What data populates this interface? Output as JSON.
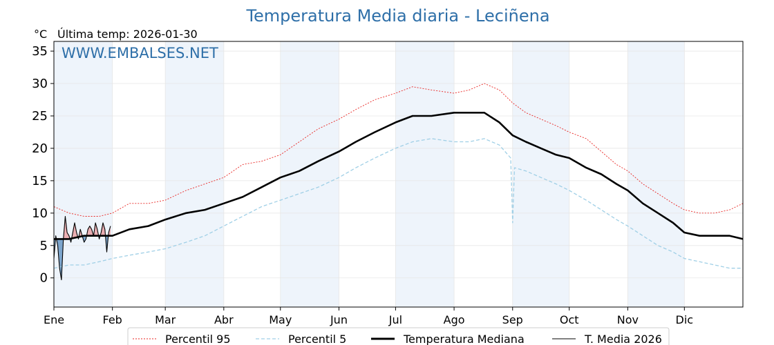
{
  "title": "Temperatura Media diaria - Leciñena",
  "unit_label": "°C",
  "last_temp_label": "Última temp: 2026-01-30",
  "brand": "WWW.EMBALSES.NET",
  "colors": {
    "p95": "#e8221f",
    "p5": "#9fcfe6",
    "median": "#000000",
    "current": "#000000",
    "above_fill": "#e9a5a8",
    "below_fill": "#6b9ac7",
    "title": "#2e6fa8",
    "month_band": "#eef4fb"
  },
  "chart_data": {
    "type": "line",
    "title": "Temperatura Media diaria - Leciñena",
    "ylabel": "°C",
    "ylim": [
      -4.5,
      36.5
    ],
    "yticks": [
      0,
      5,
      10,
      15,
      20,
      25,
      30,
      35
    ],
    "xlim": [
      0,
      365
    ],
    "grid": true,
    "legend_position": "bottom",
    "months": [
      {
        "label": "Ene",
        "day": 0
      },
      {
        "label": "Feb",
        "day": 31
      },
      {
        "label": "Mar",
        "day": 59
      },
      {
        "label": "Abr",
        "day": 90
      },
      {
        "label": "May",
        "day": 120
      },
      {
        "label": "Jun",
        "day": 151
      },
      {
        "label": "Jul",
        "day": 181
      },
      {
        "label": "Ago",
        "day": 212
      },
      {
        "label": "Sep",
        "day": 243
      },
      {
        "label": "Oct",
        "day": 273
      },
      {
        "label": "Nov",
        "day": 304
      },
      {
        "label": "Dic",
        "day": 334
      }
    ],
    "series": [
      {
        "name": "Percentil 95",
        "style": "dotted-red",
        "days": [
          0,
          8,
          16,
          24,
          31,
          40,
          50,
          59,
          70,
          80,
          90,
          100,
          110,
          120,
          130,
          140,
          151,
          160,
          170,
          181,
          190,
          200,
          212,
          220,
          228,
          236,
          243,
          250,
          258,
          266,
          273,
          282,
          290,
          298,
          304,
          312,
          320,
          328,
          334,
          342,
          350,
          358,
          365
        ],
        "values": [
          11,
          10,
          9.5,
          9.5,
          10,
          11.5,
          11.5,
          12,
          13.5,
          14.5,
          15.5,
          17.5,
          18,
          19,
          21,
          23,
          24.5,
          26,
          27.5,
          28.5,
          29.5,
          29,
          28.5,
          29,
          30,
          29,
          27,
          25.5,
          24.5,
          23.5,
          22.5,
          21.5,
          19.5,
          17.5,
          16.5,
          14.5,
          13,
          11.5,
          10.5,
          10,
          10,
          10.5,
          11.5
        ]
      },
      {
        "name": "Percentil 5",
        "style": "dashed-lightblue",
        "days": [
          0,
          8,
          16,
          24,
          31,
          40,
          50,
          59,
          70,
          80,
          90,
          100,
          110,
          120,
          130,
          140,
          151,
          160,
          170,
          181,
          190,
          200,
          212,
          220,
          228,
          236,
          242,
          243,
          244,
          250,
          258,
          266,
          273,
          282,
          290,
          298,
          304,
          312,
          320,
          328,
          334,
          342,
          350,
          358,
          365
        ],
        "values": [
          1.5,
          2,
          2,
          2.5,
          3,
          3.5,
          4,
          4.5,
          5.5,
          6.5,
          8,
          9.5,
          11,
          12,
          13,
          14,
          15.5,
          17,
          18.5,
          20,
          21,
          21.5,
          21,
          21,
          21.5,
          20.5,
          18.5,
          8.5,
          17,
          16.5,
          15.5,
          14.5,
          13.5,
          12,
          10.5,
          9,
          8,
          6.5,
          5,
          4,
          3,
          2.5,
          2,
          1.5,
          1.5
        ]
      },
      {
        "name": "Temperatura Mediana",
        "style": "solid-thick",
        "days": [
          0,
          8,
          16,
          24,
          31,
          40,
          50,
          59,
          70,
          80,
          90,
          100,
          110,
          120,
          130,
          140,
          151,
          160,
          170,
          181,
          190,
          200,
          212,
          220,
          228,
          236,
          243,
          250,
          258,
          266,
          273,
          282,
          290,
          298,
          304,
          312,
          320,
          328,
          334,
          342,
          350,
          358,
          365
        ],
        "values": [
          6,
          6,
          6.5,
          6.5,
          6.5,
          7.5,
          8,
          9,
          10,
          10.5,
          11.5,
          12.5,
          14,
          15.5,
          16.5,
          18,
          19.5,
          21,
          22.5,
          24,
          25,
          25,
          25.5,
          25.5,
          25.5,
          24,
          22,
          21,
          20,
          19,
          18.5,
          17,
          16,
          14.5,
          13.5,
          11.5,
          10,
          8.5,
          7,
          6.5,
          6.5,
          6.5,
          6
        ]
      },
      {
        "name": "T. Media 2026",
        "style": "solid-thin",
        "days": [
          0,
          1,
          2,
          3,
          4,
          5,
          6,
          7,
          8,
          9,
          10,
          11,
          12,
          13,
          14,
          15,
          16,
          17,
          18,
          19,
          20,
          21,
          22,
          23,
          24,
          25,
          26,
          27,
          28,
          29,
          30
        ],
        "values": [
          3,
          6.5,
          5,
          1.5,
          -0.3,
          6,
          9.5,
          7,
          6.5,
          5.5,
          7,
          8.5,
          7,
          6,
          7.5,
          6.5,
          5.5,
          6,
          7.5,
          8,
          7.5,
          6.5,
          8.5,
          7.5,
          6,
          7,
          8.5,
          7.5,
          4,
          7,
          8
        ]
      }
    ]
  },
  "legend": [
    {
      "label": "Percentil 95",
      "style": "dotted-red"
    },
    {
      "label": "Percentil 5",
      "style": "dashed-lightblue"
    },
    {
      "label": "Temperatura Mediana",
      "style": "solid-thick"
    },
    {
      "label": "T. Media 2026",
      "style": "solid-thin"
    }
  ]
}
